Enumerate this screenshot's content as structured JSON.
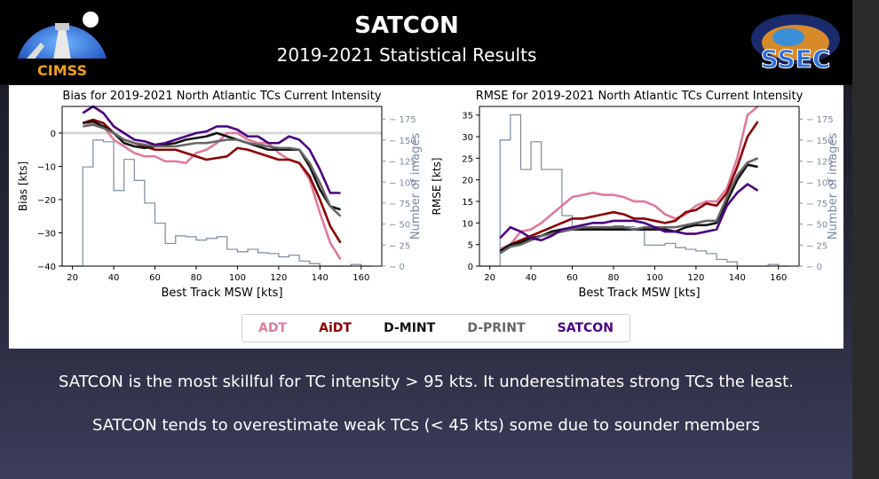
{
  "header": {
    "title": "SATCON",
    "subtitle": "2019-2021 Statistical Results",
    "logo_left": "CIMSS",
    "logo_right": "SSEC"
  },
  "legend": [
    {
      "name": "ADT",
      "color": "#e07a9a"
    },
    {
      "name": "AiDT",
      "color": "#8b0000"
    },
    {
      "name": "D-MINT",
      "color": "#111111"
    },
    {
      "name": "D-PRINT",
      "color": "#666666"
    },
    {
      "name": "SATCON",
      "color": "#4b0082"
    }
  ],
  "captions": {
    "line1": "SATCON is the most skillful for TC intensity > 95 kts. It underestimates strong TCs the least.",
    "line2": "SATCON tends to overestimate weak TCs (< 45 kts) some due to sounder members"
  },
  "chart_data": [
    {
      "type": "line",
      "title": "Bias for 2019-2021 North Atlantic TCs Current Intensity",
      "xlabel": "Best Track MSW [kts]",
      "ylabel": "Bias [kts]",
      "y2label": "Number of images",
      "xlim": [
        15,
        170
      ],
      "ylim": [
        -40,
        8
      ],
      "y2lim": [
        0,
        190
      ],
      "xticks": [
        20,
        40,
        60,
        80,
        100,
        120,
        140,
        160
      ],
      "yticks": [
        -40,
        -30,
        -20,
        -10,
        0
      ],
      "y2ticks": [
        0,
        25,
        50,
        75,
        100,
        125,
        150,
        175
      ],
      "x": [
        25,
        30,
        35,
        40,
        45,
        50,
        55,
        60,
        65,
        70,
        75,
        80,
        85,
        90,
        95,
        100,
        105,
        110,
        115,
        120,
        125,
        130,
        135,
        140,
        145,
        150
      ],
      "series": [
        {
          "name": "ADT",
          "color": "#e07a9a",
          "values": [
            2,
            3,
            2,
            -2,
            -4,
            -6,
            -7,
            -7,
            -8.5,
            -8.5,
            -9,
            -6,
            -5,
            -3,
            0,
            0,
            -2,
            -3,
            -3,
            -6,
            -8,
            -9,
            -14,
            -24,
            -33,
            -38
          ]
        },
        {
          "name": "AiDT",
          "color": "#8b0000",
          "values": [
            3,
            4,
            3,
            0,
            -2,
            -3,
            -4,
            -5,
            -5,
            -5,
            -6,
            -7,
            -8,
            -7.5,
            -7,
            -4.5,
            -5,
            -6,
            -7,
            -8,
            -8,
            -9,
            -13,
            -20,
            -28,
            -33
          ]
        },
        {
          "name": "D-MINT",
          "color": "#111111",
          "values": [
            3,
            3.5,
            2,
            0,
            -3,
            -4,
            -4.5,
            -4,
            -3.5,
            -3,
            -2,
            -1.5,
            -1,
            0,
            -1,
            -2,
            -3,
            -4,
            -5,
            -5,
            -5,
            -5,
            -10,
            -17,
            -22,
            -23
          ]
        },
        {
          "name": "D-PRINT",
          "color": "#666666",
          "values": [
            2,
            2.5,
            1.5,
            0,
            -2,
            -3,
            -3.5,
            -4,
            -4,
            -4,
            -3.5,
            -3,
            -3,
            -2.5,
            -2,
            -2,
            -3,
            -3.5,
            -4,
            -4.5,
            -4.5,
            -5,
            -9,
            -15,
            -22,
            -25
          ]
        },
        {
          "name": "SATCON",
          "color": "#4b0082",
          "values": [
            6,
            8,
            6,
            2,
            0,
            -2,
            -2.5,
            -3.5,
            -3,
            -2,
            -1,
            0,
            0.5,
            2,
            2,
            1,
            -1,
            -1,
            -3,
            -3,
            -1,
            -2,
            -5,
            -11,
            -18,
            -18
          ]
        }
      ],
      "histogram": {
        "edges": [
          15,
          25,
          30,
          35,
          40,
          45,
          50,
          55,
          60,
          65,
          70,
          75,
          80,
          85,
          90,
          95,
          100,
          105,
          110,
          115,
          120,
          125,
          130,
          135,
          140,
          145,
          150,
          155,
          160,
          165
        ],
        "counts": [
          0,
          118,
          150,
          148,
          90,
          127,
          102,
          75,
          51,
          27,
          36,
          35,
          31,
          33,
          35,
          20,
          17,
          20,
          16,
          15,
          11,
          13,
          6,
          3,
          0,
          0,
          0,
          2,
          0
        ]
      }
    },
    {
      "type": "line",
      "title": "RMSE for 2019-2021 North Atlantic TCs Current Intensity",
      "xlabel": "Best Track MSW [kts]",
      "ylabel": "RMSE [kts]",
      "y2label": "Number of images",
      "xlim": [
        15,
        170
      ],
      "ylim": [
        0,
        37
      ],
      "y2lim": [
        0,
        190
      ],
      "xticks": [
        20,
        40,
        60,
        80,
        100,
        120,
        140,
        160
      ],
      "yticks": [
        0,
        5,
        10,
        15,
        20,
        25,
        30,
        35
      ],
      "y2ticks": [
        0,
        25,
        50,
        75,
        100,
        125,
        150,
        175
      ],
      "x": [
        25,
        30,
        35,
        40,
        45,
        50,
        55,
        60,
        65,
        70,
        75,
        80,
        85,
        90,
        95,
        100,
        105,
        110,
        115,
        120,
        125,
        130,
        135,
        140,
        145,
        150
      ],
      "series": [
        {
          "name": "ADT",
          "color": "#e07a9a",
          "values": [
            4,
            5,
            8,
            8.5,
            10,
            12,
            14,
            16,
            16.5,
            17,
            16.5,
            16.5,
            16,
            15,
            15,
            14,
            12,
            11,
            12,
            14,
            15,
            15,
            18,
            25,
            35,
            38
          ]
        },
        {
          "name": "AiDT",
          "color": "#8b0000",
          "values": [
            3.5,
            5,
            6,
            7,
            8,
            9,
            10,
            11,
            11,
            11.5,
            12,
            12.5,
            12,
            11,
            11,
            10.5,
            10,
            10.5,
            12.5,
            13,
            14.5,
            14,
            17,
            23,
            30,
            33.5
          ]
        },
        {
          "name": "D-MINT",
          "color": "#111111",
          "values": [
            3.5,
            5,
            5.5,
            6.5,
            7,
            8,
            8.5,
            8.5,
            8.5,
            8.5,
            8.5,
            8.5,
            8.5,
            8.5,
            8.5,
            8.5,
            8.5,
            8,
            9,
            9.5,
            9.5,
            10,
            15,
            20,
            23.5,
            23
          ]
        },
        {
          "name": "D-PRINT",
          "color": "#666666",
          "values": [
            3,
            4.5,
            5,
            6,
            7,
            7.5,
            8,
            8.5,
            9,
            9,
            9,
            9,
            9,
            8.5,
            9,
            9,
            9,
            9,
            9.5,
            10,
            10.5,
            10.5,
            16,
            21,
            24,
            25
          ]
        },
        {
          "name": "SATCON",
          "color": "#4b0082",
          "values": [
            6.5,
            9,
            8,
            6.5,
            6,
            7,
            8.5,
            9,
            9.5,
            10,
            10,
            10.5,
            10.5,
            10.5,
            10,
            9,
            8,
            8,
            7.5,
            7.5,
            8,
            8.5,
            14,
            17,
            19,
            17.5
          ]
        }
      ],
      "histogram": {
        "edges": [
          15,
          25,
          30,
          35,
          40,
          45,
          50,
          55,
          60,
          65,
          70,
          75,
          80,
          85,
          90,
          95,
          100,
          105,
          110,
          115,
          120,
          125,
          130,
          135,
          140,
          145,
          150,
          155,
          160,
          165
        ],
        "counts": [
          0,
          150,
          180,
          115,
          148,
          115,
          115,
          60,
          45,
          45,
          47,
          47,
          48,
          47,
          45,
          25,
          25,
          27,
          22,
          20,
          18,
          15,
          8,
          5,
          0,
          0,
          0,
          2,
          0
        ]
      }
    }
  ]
}
